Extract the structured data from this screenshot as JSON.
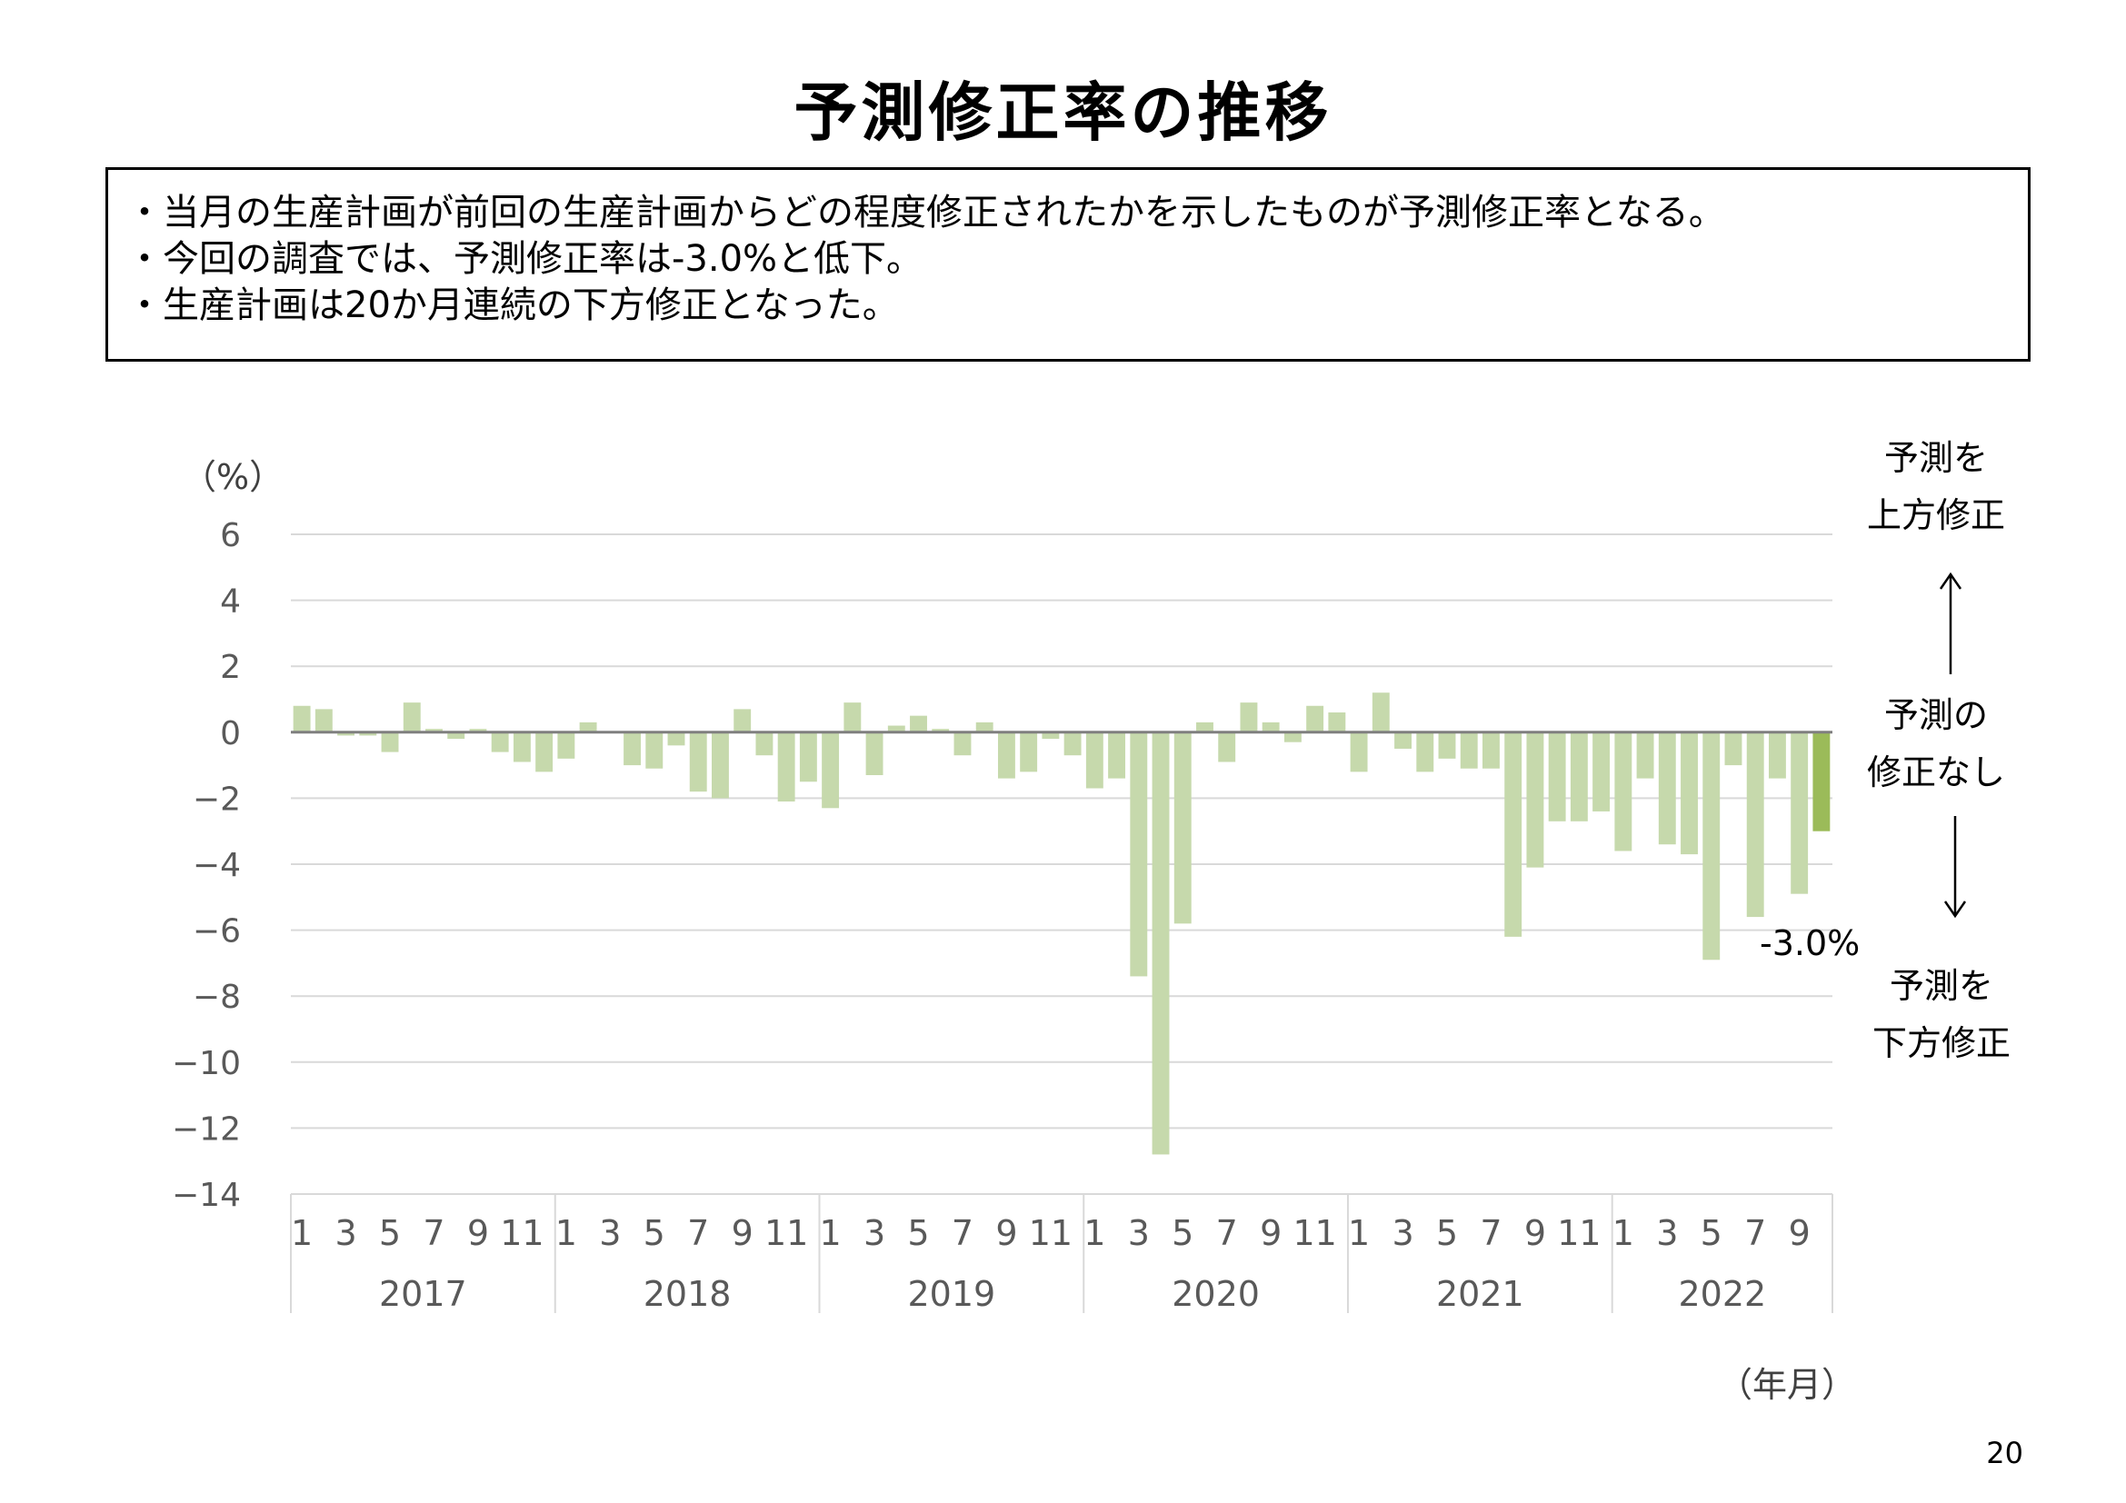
{
  "header": {
    "title": "予測修正率の推移"
  },
  "summary": {
    "lines": [
      "・当月の生産計画が前回の生産計画からどの程度修正されたかを示したものが予測修正率となる。",
      "・今回の調査では、予測修正率は-3.0%と低下。",
      "・生産計画は20か月連続の下方修正となった。"
    ]
  },
  "side_labels": {
    "upward": [
      "予測を",
      "上方修正"
    ],
    "none": [
      "予測の",
      "修正なし"
    ],
    "downward": [
      "予測を",
      "下方修正"
    ]
  },
  "page_number": "20",
  "colors": {
    "bar": "#c6d9ac",
    "bar_highlight": "#9bbb59",
    "grid": "#d9d9d9",
    "zero_line": "#7f7f7f",
    "text_axis": "#595959"
  },
  "chart_data": {
    "type": "bar",
    "ylabel": "（%）",
    "xlabel": "（年月）",
    "ylim": [
      -14,
      6
    ],
    "yticks": [
      "6",
      "4",
      "2",
      "0",
      "−2",
      "−4",
      "−6",
      "−8",
      "−10",
      "−12",
      "−14"
    ],
    "ytick_values": [
      6,
      4,
      2,
      0,
      -2,
      -4,
      -6,
      -8,
      -10,
      -12,
      -14
    ],
    "grid": true,
    "month_ticks": [
      "1",
      "3",
      "5",
      "7",
      "9",
      "11"
    ],
    "years": [
      "2017",
      "2018",
      "2019",
      "2020",
      "2021",
      "2022"
    ],
    "series": [
      {
        "values": [
          0.8,
          0.7,
          -0.1,
          -0.1,
          -0.6,
          0.9,
          0.1,
          -0.2,
          0.1,
          -0.6,
          -0.9,
          -1.2,
          -0.8,
          0.3,
          0.0,
          -1.0,
          -1.1,
          -0.4,
          -1.8,
          -2.0,
          0.7,
          -0.7,
          -2.1,
          -1.5,
          -2.3,
          0.9,
          -1.3,
          0.2,
          0.5,
          0.1,
          -0.7,
          0.3,
          -1.4,
          -1.2,
          -0.2,
          -0.7,
          -1.7,
          -1.4,
          -7.4,
          -12.8,
          -5.8,
          0.3,
          -0.9,
          0.9,
          0.3,
          -0.3,
          0.8,
          0.6,
          -1.2,
          1.2,
          -0.5,
          -1.2,
          -0.8,
          -1.1,
          -1.1,
          -6.2,
          -4.1,
          -2.7,
          -2.7,
          -2.4,
          -3.6,
          -1.4,
          -3.4,
          -3.7,
          -6.9,
          -1.0,
          -5.6,
          -1.4,
          -4.9,
          -3.0
        ]
      }
    ],
    "annotation": {
      "text": "-3.0%",
      "index": 69,
      "value": -3.0
    }
  }
}
